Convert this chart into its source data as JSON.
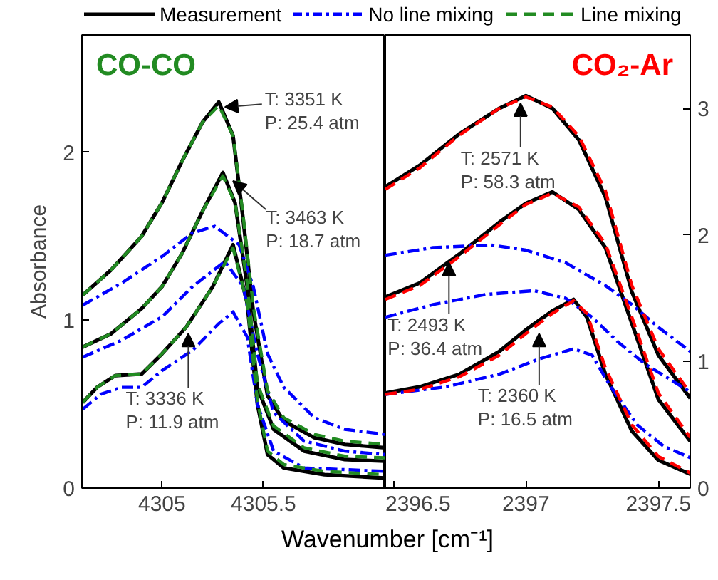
{
  "chart_data": [
    {
      "type": "line",
      "title": "CO-CO",
      "xlabel": "Wavenumber [cm⁻¹]",
      "ylabel": "Absorbance",
      "xlim": [
        4304.606,
        4306.1
      ],
      "ylim": [
        0,
        2.7
      ],
      "xticks": [
        4305,
        4305.5
      ],
      "yticks": [
        0,
        1,
        2
      ],
      "grid": false,
      "legend": "top",
      "marker": "none",
      "series": [
        {
          "name": "Measurement",
          "color": "#000000",
          "line_style": "solid",
          "x": [
            4304.61,
            4304.75,
            4304.9,
            4305.0,
            4305.1,
            4305.2,
            4305.28,
            4305.35,
            4305.4,
            4305.45,
            4305.52,
            4305.6,
            4305.75,
            4305.9,
            4306.1
          ],
          "values": [
            1.15,
            1.3,
            1.5,
            1.7,
            1.95,
            2.18,
            2.3,
            2.1,
            1.6,
            1.05,
            0.55,
            0.4,
            0.3,
            0.26,
            0.24
          ]
        },
        {
          "color": "#000000",
          "line_style": "solid",
          "x": [
            4304.61,
            4304.75,
            4304.9,
            4305.0,
            4305.1,
            4305.2,
            4305.3,
            4305.36,
            4305.42,
            4305.47,
            4305.55,
            4305.7,
            4305.9,
            4306.1
          ],
          "values": [
            0.84,
            0.92,
            1.07,
            1.2,
            1.4,
            1.65,
            1.88,
            1.7,
            1.2,
            0.6,
            0.35,
            0.22,
            0.17,
            0.16
          ]
        },
        {
          "color": "#000000",
          "line_style": "solid",
          "x": [
            4304.61,
            4304.68,
            4304.77,
            4304.9,
            4305.0,
            4305.12,
            4305.25,
            4305.35,
            4305.42,
            4305.47,
            4305.52,
            4305.6,
            4305.8,
            4306.1
          ],
          "values": [
            0.51,
            0.6,
            0.67,
            0.68,
            0.8,
            0.96,
            1.2,
            1.45,
            1.1,
            0.5,
            0.2,
            0.12,
            0.08,
            0.06
          ]
        },
        {
          "name": "No line mixing",
          "color": "#0000ff",
          "line_style": "dashdot",
          "x": [
            4304.61,
            4304.8,
            4305.0,
            4305.15,
            4305.26,
            4305.38,
            4305.45,
            4305.52,
            4305.6,
            4305.75,
            4305.9,
            4306.1
          ],
          "values": [
            1.09,
            1.22,
            1.38,
            1.52,
            1.56,
            1.45,
            1.2,
            0.8,
            0.6,
            0.42,
            0.35,
            0.32
          ]
        },
        {
          "color": "#0000ff",
          "line_style": "dashdot",
          "x": [
            4304.61,
            4304.8,
            4305.0,
            4305.15,
            4305.31,
            4305.4,
            4305.47,
            4305.55,
            4305.7,
            4305.9,
            4306.1
          ],
          "values": [
            0.78,
            0.88,
            1.02,
            1.2,
            1.35,
            1.2,
            0.8,
            0.45,
            0.28,
            0.22,
            0.2
          ]
        },
        {
          "color": "#0000ff",
          "line_style": "dashdot",
          "x": [
            4304.61,
            4304.7,
            4304.8,
            4304.9,
            4305.0,
            4305.15,
            4305.28,
            4305.35,
            4305.42,
            4305.47,
            4305.55,
            4305.7,
            4306.1
          ],
          "values": [
            0.47,
            0.56,
            0.6,
            0.6,
            0.7,
            0.82,
            0.98,
            1.05,
            0.9,
            0.5,
            0.22,
            0.12,
            0.1
          ]
        },
        {
          "name": "Line mixing",
          "color": "#228b22",
          "line_style": "dashed",
          "x": [
            4304.61,
            4304.75,
            4304.9,
            4305.0,
            4305.1,
            4305.2,
            4305.28,
            4305.35,
            4305.4,
            4305.45,
            4305.52,
            4305.6,
            4305.75,
            4305.9,
            4306.1
          ],
          "values": [
            1.15,
            1.3,
            1.5,
            1.7,
            1.95,
            2.18,
            2.28,
            2.1,
            1.62,
            1.08,
            0.58,
            0.42,
            0.32,
            0.28,
            0.26
          ]
        },
        {
          "color": "#228b22",
          "line_style": "dashed",
          "x": [
            4304.61,
            4304.75,
            4304.9,
            4305.0,
            4305.1,
            4305.2,
            4305.3,
            4305.36,
            4305.42,
            4305.47,
            4305.55,
            4305.7,
            4305.9,
            4306.1
          ],
          "values": [
            0.84,
            0.92,
            1.07,
            1.2,
            1.4,
            1.65,
            1.86,
            1.7,
            1.22,
            0.62,
            0.37,
            0.24,
            0.19,
            0.18
          ]
        },
        {
          "color": "#228b22",
          "line_style": "dashed",
          "x": [
            4304.61,
            4304.68,
            4304.77,
            4304.9,
            4305.0,
            4305.12,
            4305.25,
            4305.35,
            4305.42,
            4305.47,
            4305.52,
            4305.6,
            4305.8,
            4306.1
          ],
          "values": [
            0.51,
            0.6,
            0.67,
            0.68,
            0.8,
            0.96,
            1.2,
            1.43,
            1.1,
            0.52,
            0.22,
            0.14,
            0.1,
            0.08
          ]
        }
      ],
      "annotations": [
        {
          "text": "T: 3351 K\nP: 25.4 atm",
          "x": 4305.31,
          "y": 2.27
        },
        {
          "text": "T: 3463 K\nP: 18.7 atm",
          "x": 4305.35,
          "y": 1.83
        },
        {
          "text": "T: 3336 K\nP: 11.9 atm",
          "x": 4305.13,
          "y": 0.92
        }
      ]
    },
    {
      "type": "line",
      "title": "CO₂-Ar",
      "xlim": [
        2396.47,
        2397.62
      ],
      "ylim": [
        0,
        3.58
      ],
      "xticks": [
        2396.5,
        2397,
        2397.5
      ],
      "yticks": [
        0,
        1,
        2,
        3
      ],
      "grid": false,
      "marker": "none",
      "series": [
        {
          "color": "#000000",
          "line_style": "solid",
          "x": [
            2396.47,
            2396.6,
            2396.75,
            2396.9,
            2397.0,
            2397.1,
            2397.2,
            2397.3,
            2397.4,
            2397.5,
            2397.62
          ],
          "values": [
            2.38,
            2.55,
            2.8,
            3.0,
            3.1,
            3.0,
            2.75,
            2.3,
            1.55,
            1.05,
            0.71
          ]
        },
        {
          "color": "#000000",
          "line_style": "solid",
          "x": [
            2396.47,
            2396.6,
            2396.75,
            2396.9,
            2397.0,
            2397.1,
            2397.2,
            2397.3,
            2397.4,
            2397.5,
            2397.62
          ],
          "values": [
            1.51,
            1.62,
            1.85,
            2.1,
            2.25,
            2.34,
            2.2,
            1.9,
            1.3,
            0.7,
            0.37
          ]
        },
        {
          "color": "#000000",
          "line_style": "solid",
          "x": [
            2396.47,
            2396.6,
            2396.75,
            2396.9,
            2397.0,
            2397.1,
            2397.18,
            2397.23,
            2397.3,
            2397.4,
            2397.5,
            2397.62
          ],
          "values": [
            0.75,
            0.8,
            0.9,
            1.08,
            1.25,
            1.4,
            1.49,
            1.35,
            0.9,
            0.45,
            0.22,
            0.11
          ]
        },
        {
          "color": "#0000ff",
          "line_style": "dashdot",
          "x": [
            2396.47,
            2396.65,
            2396.87,
            2397.0,
            2397.15,
            2397.3,
            2397.4,
            2397.5,
            2397.62
          ],
          "values": [
            1.84,
            1.9,
            1.92,
            1.88,
            1.78,
            1.6,
            1.45,
            1.27,
            1.08
          ]
        },
        {
          "color": "#0000ff",
          "line_style": "dashdot",
          "x": [
            2396.47,
            2396.65,
            2396.85,
            2397.03,
            2397.15,
            2397.25,
            2397.35,
            2397.45,
            2397.62
          ],
          "values": [
            1.35,
            1.45,
            1.53,
            1.56,
            1.5,
            1.35,
            1.15,
            0.98,
            0.76
          ]
        },
        {
          "color": "#0000ff",
          "line_style": "dashdot",
          "x": [
            2396.47,
            2396.7,
            2396.9,
            2397.05,
            2397.18,
            2397.25,
            2397.32,
            2397.42,
            2397.52,
            2397.62
          ],
          "values": [
            0.74,
            0.8,
            0.9,
            1.02,
            1.1,
            1.05,
            0.8,
            0.5,
            0.33,
            0.24
          ]
        },
        {
          "color": "#ff0000",
          "line_style": "dashed",
          "x": [
            2396.47,
            2396.6,
            2396.75,
            2396.9,
            2397.0,
            2397.1,
            2397.2,
            2397.3,
            2397.4,
            2397.5,
            2397.62
          ],
          "values": [
            2.36,
            2.53,
            2.79,
            3.0,
            3.09,
            3.01,
            2.78,
            2.35,
            1.6,
            1.1,
            0.75
          ]
        },
        {
          "color": "#ff0000",
          "line_style": "dashed",
          "x": [
            2396.47,
            2396.6,
            2396.75,
            2396.9,
            2397.0,
            2397.1,
            2397.2,
            2397.3,
            2397.4,
            2397.5,
            2397.62
          ],
          "values": [
            1.49,
            1.6,
            1.83,
            2.08,
            2.24,
            2.33,
            2.22,
            1.93,
            1.35,
            0.75,
            0.4
          ]
        },
        {
          "color": "#ff0000",
          "line_style": "dashed",
          "x": [
            2396.47,
            2396.6,
            2396.75,
            2396.9,
            2397.0,
            2397.1,
            2397.18,
            2397.23,
            2397.3,
            2397.4,
            2397.5,
            2397.62
          ],
          "values": [
            0.74,
            0.78,
            0.88,
            1.05,
            1.22,
            1.38,
            1.48,
            1.38,
            0.95,
            0.5,
            0.25,
            0.12
          ]
        }
      ],
      "annotations": [
        {
          "text": "T: 2571 K\nP: 58.3 atm",
          "x": 2396.98,
          "y": 3.04
        },
        {
          "text": "T: 2493 K\nP: 36.4 atm",
          "x": 2396.71,
          "y": 1.78
        },
        {
          "text": "T: 2360 K\nP: 16.5 atm",
          "x": 2397.05,
          "y": 1.22
        }
      ]
    }
  ]
}
